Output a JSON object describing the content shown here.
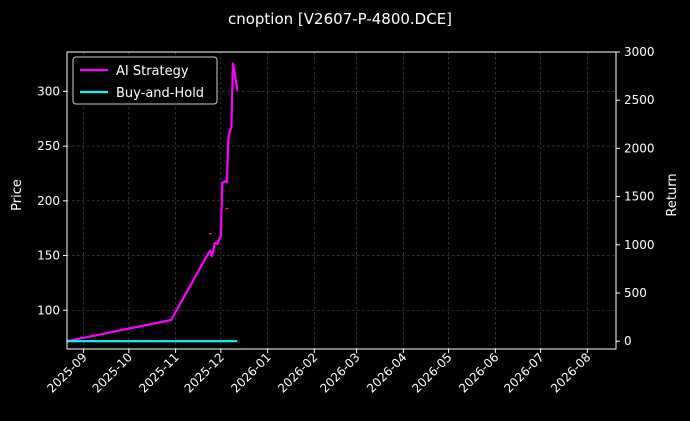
{
  "chart_data": {
    "type": "line",
    "title": "cnoption [V2607-P-4800.DCE]",
    "ylabel_left": "Price",
    "ylabel_right": "Return",
    "grid": true,
    "legend_placement": "top-left",
    "xlim": [
      "2025-08-21",
      "2026-08-20"
    ],
    "ylim_left": [
      64.6,
      336.0
    ],
    "ylim_right": [
      -81,
      3000
    ],
    "x_ticks": [
      "2025-09",
      "2025-10",
      "2025-11",
      "2025-12",
      "2026-01",
      "2026-02",
      "2026-03",
      "2026-04",
      "2026-05",
      "2026-06",
      "2026-07",
      "2026-08"
    ],
    "y_ticks_left": [
      "100",
      "150",
      "200",
      "250",
      "300"
    ],
    "y_ticks_right": [
      "0",
      "500",
      "1000",
      "1500",
      "2000",
      "2500",
      "3000"
    ],
    "series": [
      {
        "name": "AI Strategy",
        "axis": "right",
        "color": "#ff00ff",
        "points": [
          [
            "2025-08-21",
            0
          ],
          [
            "2025-10-29",
            220
          ],
          [
            "2025-11-23",
            920
          ],
          [
            "2025-11-24",
            940
          ],
          [
            "2025-11-25",
            880
          ],
          [
            "2025-11-26",
            940
          ],
          [
            "2025-11-27",
            1020
          ],
          [
            "2025-11-29",
            1010
          ],
          [
            "2025-11-30",
            1060
          ],
          [
            "2025-12-01",
            1090
          ],
          [
            "2025-12-02",
            1640
          ],
          [
            "2025-12-03",
            1650
          ],
          [
            "2025-12-04",
            1660
          ],
          [
            "2025-12-05",
            1650
          ],
          [
            "2025-12-06",
            2100
          ],
          [
            "2025-12-07",
            2180
          ],
          [
            "2025-12-08",
            2220
          ],
          [
            "2025-12-09",
            2880
          ],
          [
            "2025-12-10",
            2800
          ],
          [
            "2025-12-12",
            2600
          ]
        ]
      },
      {
        "name": "Buy-and-Hold",
        "axis": "right",
        "color": "#00ffff",
        "points": [
          [
            "2025-08-21",
            0
          ],
          [
            "2025-12-12",
            0
          ]
        ]
      }
    ],
    "price_markers": [
      {
        "date": "2025-11-24",
        "value": 170,
        "color": "#ff3030"
      },
      {
        "date": "2025-12-05",
        "value": 193,
        "color": "#ff3030"
      }
    ]
  }
}
